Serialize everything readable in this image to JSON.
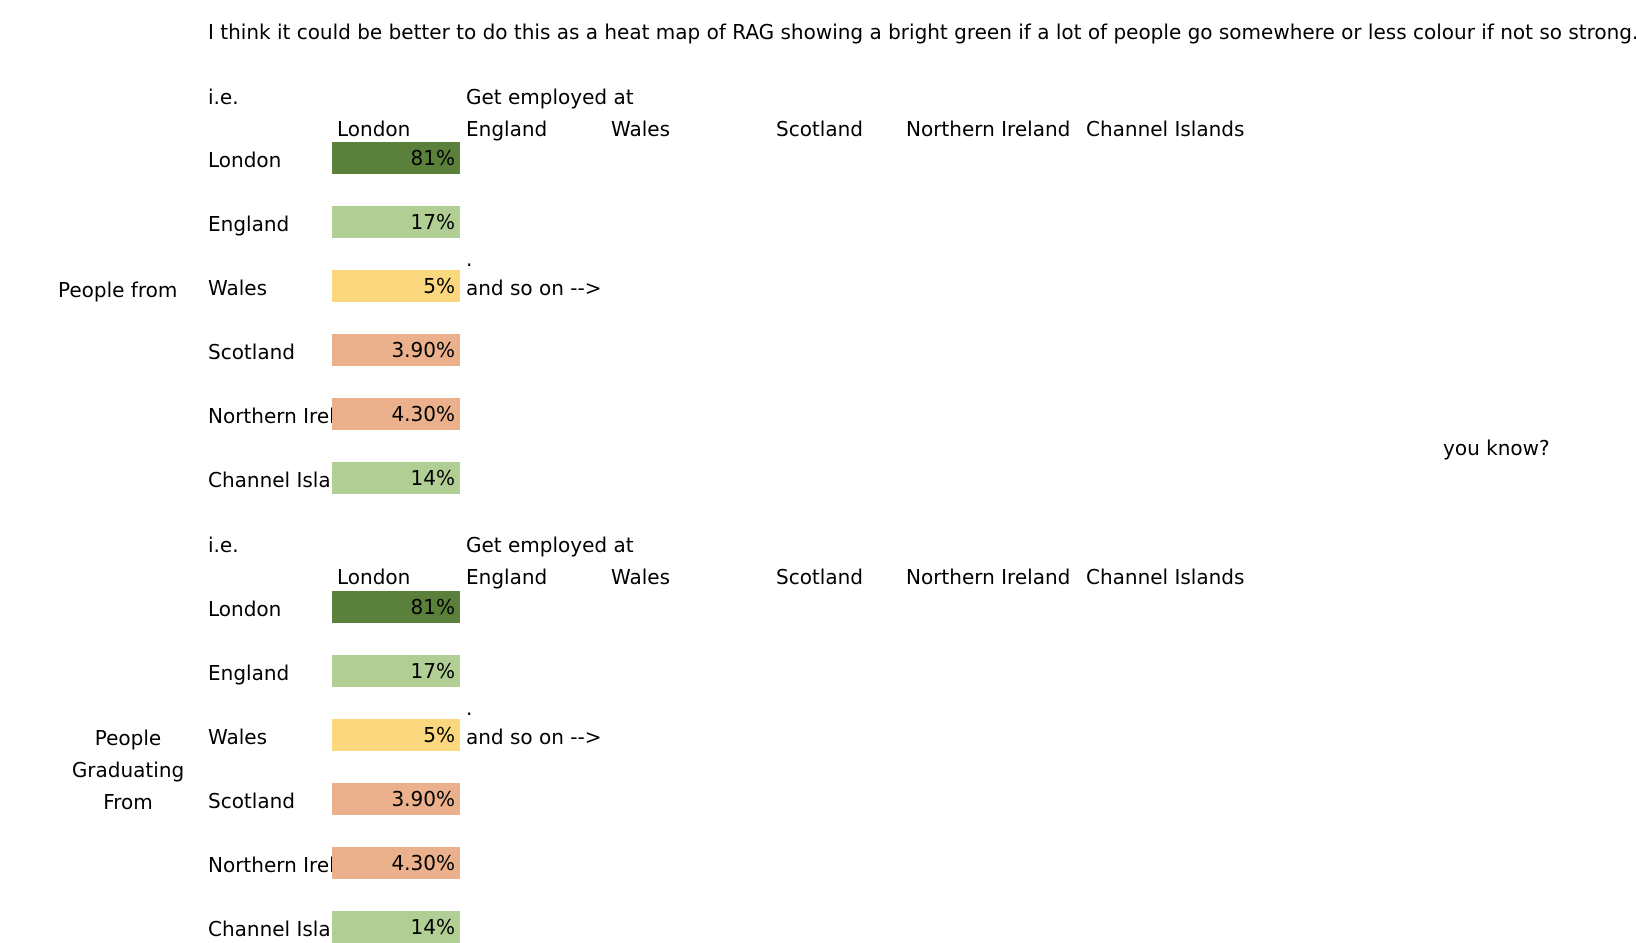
{
  "note": "I think it could be better to do this as a heat map of RAG showing a bright green if a lot of people go somewhere or less colour if not so strong...",
  "aside": "you know?",
  "colors": {
    "dark_green": "#5b803c",
    "light_green": "#b1cf95",
    "yellow": "#fbd87d",
    "orange": "#ebb18c"
  },
  "tables": [
    {
      "ie": "i.e.",
      "header_top": "Get employed at",
      "columns": [
        "London",
        "England",
        "Wales",
        "Scotland",
        "Northern Ireland",
        "Channel Islands"
      ],
      "group_label": [
        "People from"
      ],
      "rows": [
        {
          "label": "London",
          "value": "81%",
          "color": "dark_green"
        },
        {
          "label": "England",
          "value": "17%",
          "color": "light_green"
        },
        {
          "label": "Wales",
          "value": "5%",
          "color": "yellow"
        },
        {
          "label": "Scotland",
          "value": "3.90%",
          "color": "orange"
        },
        {
          "label": "Northern Ireland",
          "value": "4.30%",
          "color": "orange"
        },
        {
          "label": "Channel Islands",
          "value": "14%",
          "color": "light_green"
        }
      ],
      "dot": ".",
      "continuation": "and so on -->"
    },
    {
      "ie": "i.e.",
      "header_top": "Get employed at",
      "columns": [
        "London",
        "England",
        "Wales",
        "Scotland",
        "Northern Ireland",
        "Channel Islands"
      ],
      "group_label": [
        "People",
        "Graduating",
        "From"
      ],
      "rows": [
        {
          "label": "London",
          "value": "81%",
          "color": "dark_green"
        },
        {
          "label": "England",
          "value": "17%",
          "color": "light_green"
        },
        {
          "label": "Wales",
          "value": "5%",
          "color": "yellow"
        },
        {
          "label": "Scotland",
          "value": "3.90%",
          "color": "orange"
        },
        {
          "label": "Northern Ireland",
          "value": "4.30%",
          "color": "orange"
        },
        {
          "label": "Channel Islands",
          "value": "14%",
          "color": "light_green"
        }
      ],
      "dot": ".",
      "continuation": "and so on -->"
    }
  ]
}
